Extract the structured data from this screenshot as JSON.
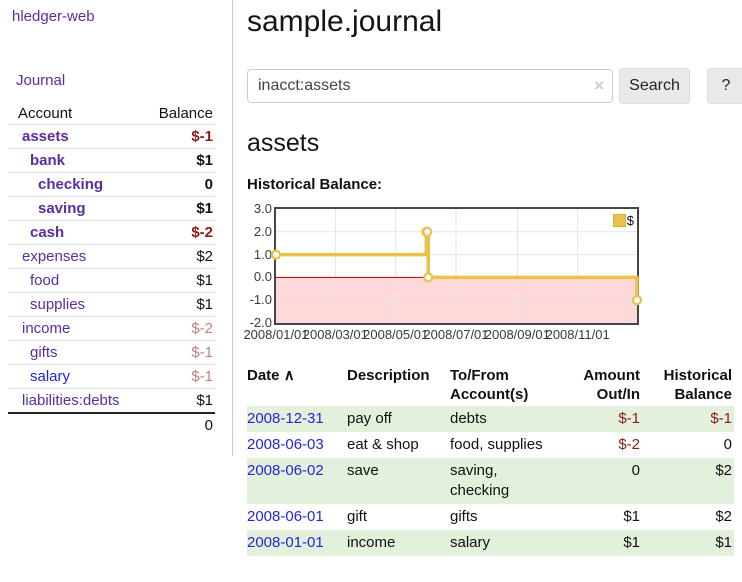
{
  "colors": {
    "link_purple": "#5b2d9e",
    "link_blue": "#2525d8",
    "negative_strong": "#8e1a1a",
    "negative_muted": "#c48181",
    "row_stripe_green": "#e3f0dc",
    "button_bg": "#e9e9e9",
    "chart_line_gold": "#e9c24a",
    "chart_negative_pink": "#ffd9d9",
    "chart_zero_line_red": "#a00000",
    "chart_grid": "#e4e4e4",
    "chart_border": "#454545"
  },
  "sidebar": {
    "brand": "hledger-web",
    "nav_journal": "Journal",
    "headers": {
      "account": "Account",
      "balance": "Balance"
    },
    "accounts": [
      {
        "name": "assets",
        "balance": "$-1",
        "indent": 1,
        "bold": true,
        "balance_class": "neg-strong",
        "blue": false
      },
      {
        "name": "bank",
        "balance": "$1",
        "indent": 2,
        "bold": true,
        "balance_class": "",
        "blue": false
      },
      {
        "name": "checking",
        "balance": "0",
        "indent": 3,
        "bold": true,
        "balance_class": "",
        "blue": false
      },
      {
        "name": "saving",
        "balance": "$1",
        "indent": 3,
        "bold": true,
        "balance_class": "",
        "blue": false
      },
      {
        "name": "cash",
        "balance": "$-2",
        "indent": 2,
        "bold": true,
        "balance_class": "neg-strong",
        "blue": false
      },
      {
        "name": "expenses",
        "balance": "$2",
        "indent": 1,
        "bold": false,
        "balance_class": "",
        "blue": false
      },
      {
        "name": "food",
        "balance": "$1",
        "indent": 2,
        "bold": false,
        "balance_class": "",
        "blue": false
      },
      {
        "name": "supplies",
        "balance": "$1",
        "indent": 2,
        "bold": false,
        "balance_class": "",
        "blue": false
      },
      {
        "name": "income",
        "balance": "$-2",
        "indent": 1,
        "bold": false,
        "balance_class": "neg-muted",
        "blue": false
      },
      {
        "name": "gifts",
        "balance": "$-1",
        "indent": 2,
        "bold": false,
        "balance_class": "neg-muted",
        "blue": false
      },
      {
        "name": "salary",
        "balance": "$-1",
        "indent": 2,
        "bold": false,
        "balance_class": "neg-muted",
        "blue": true
      },
      {
        "name": "liabilities:debts",
        "balance": "$1",
        "indent": 1,
        "bold": false,
        "balance_class": "",
        "blue": false
      }
    ],
    "total": "0"
  },
  "main": {
    "title": "sample.journal",
    "search": {
      "value": "inacct:assets",
      "clear_icon": "×",
      "button_label": "Search",
      "help_label": "?"
    },
    "account_heading": "assets",
    "chart_label": "Historical Balance:"
  },
  "chart_data": {
    "type": "line",
    "step": true,
    "title": "Historical Balance:",
    "series": [
      {
        "name": "$",
        "color": "#e9c24a",
        "points": [
          {
            "date": "2008-01-01",
            "value": 1
          },
          {
            "date": "2008-06-01",
            "value": 2
          },
          {
            "date": "2008-06-02",
            "value": 2
          },
          {
            "date": "2008-06-03",
            "value": 0
          },
          {
            "date": "2008-12-31",
            "value": -1
          }
        ]
      }
    ],
    "x_ticks": [
      "2008/01/01",
      "2008/03/01",
      "2008/05/01",
      "2008/07/01",
      "2008/09/01",
      "2008/11/01"
    ],
    "y_ticks": [
      "3.0",
      "2.0",
      "1.0",
      "0.0",
      "-1.0",
      "-2.0"
    ],
    "xlim": [
      "2008-01-01",
      "2008-12-31"
    ],
    "ylim": [
      -2,
      3
    ],
    "grid": true,
    "legend_position": "top-right",
    "negative_region_color": "#ffd9d9",
    "zero_line_color": "#a00000"
  },
  "register": {
    "headers": {
      "date": "Date",
      "description": "Description",
      "accounts": "To/From Account(s)",
      "amount": "Amount Out/In",
      "balance": "Historical Balance"
    },
    "sort_icon": "∧",
    "rows": [
      {
        "date": "2008-12-31",
        "description": "pay off",
        "accounts": [
          "debts"
        ],
        "amount": "$-1",
        "balance": "$-1",
        "amount_class": "neg-strong",
        "balance_class": "neg-strong"
      },
      {
        "date": "2008-06-03",
        "description": "eat & shop",
        "accounts": [
          "food, supplies"
        ],
        "amount": "$-2",
        "balance": "0",
        "amount_class": "neg-strong",
        "balance_class": ""
      },
      {
        "date": "2008-06-02",
        "description": "save",
        "accounts": [
          "saving,",
          "checking"
        ],
        "amount": "0",
        "balance": "$2",
        "amount_class": "",
        "balance_class": ""
      },
      {
        "date": "2008-06-01",
        "description": "gift",
        "accounts": [
          "gifts"
        ],
        "amount": "$1",
        "balance": "$2",
        "amount_class": "",
        "balance_class": ""
      },
      {
        "date": "2008-01-01",
        "description": "income",
        "accounts": [
          "salary"
        ],
        "amount": "$1",
        "balance": "$1",
        "amount_class": "",
        "balance_class": ""
      }
    ]
  }
}
